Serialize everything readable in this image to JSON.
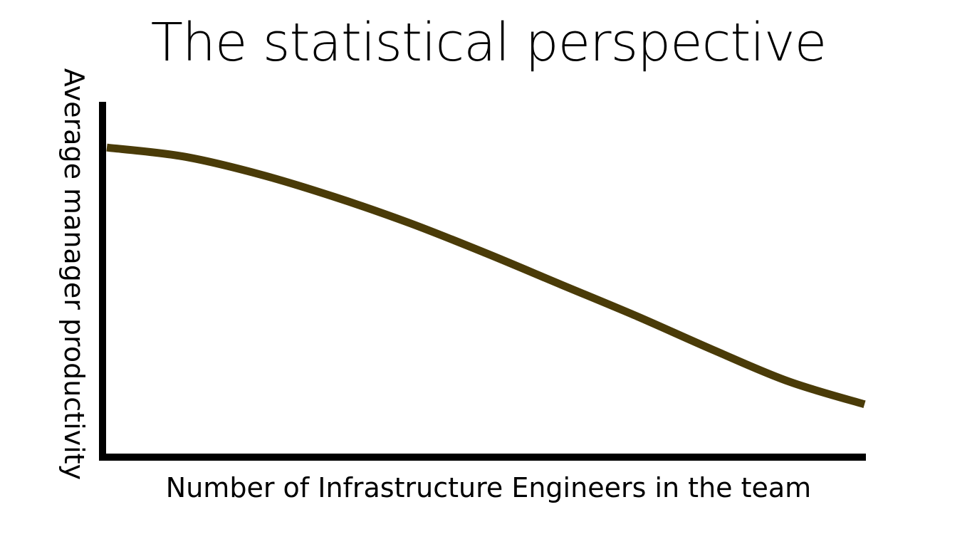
{
  "chart_data": {
    "type": "line",
    "title": "The statistical perspective",
    "xlabel": "Number of Infrastructure Engineers in the team",
    "ylabel": "Average manager productivity",
    "ticks_shown": false,
    "grid": false,
    "legend": "none",
    "x": [
      0,
      1,
      2,
      3,
      4,
      5,
      6,
      7,
      8,
      9,
      10
    ],
    "series": [
      {
        "values": [
          8.7,
          8.45,
          7.95,
          7.3,
          6.55,
          5.7,
          4.8,
          3.9,
          2.95,
          2.05,
          1.4
        ],
        "color": "#4a3b08"
      }
    ],
    "xlim": [
      0,
      10
    ],
    "ylim": [
      0,
      10
    ],
    "axis_color": "#000000"
  }
}
